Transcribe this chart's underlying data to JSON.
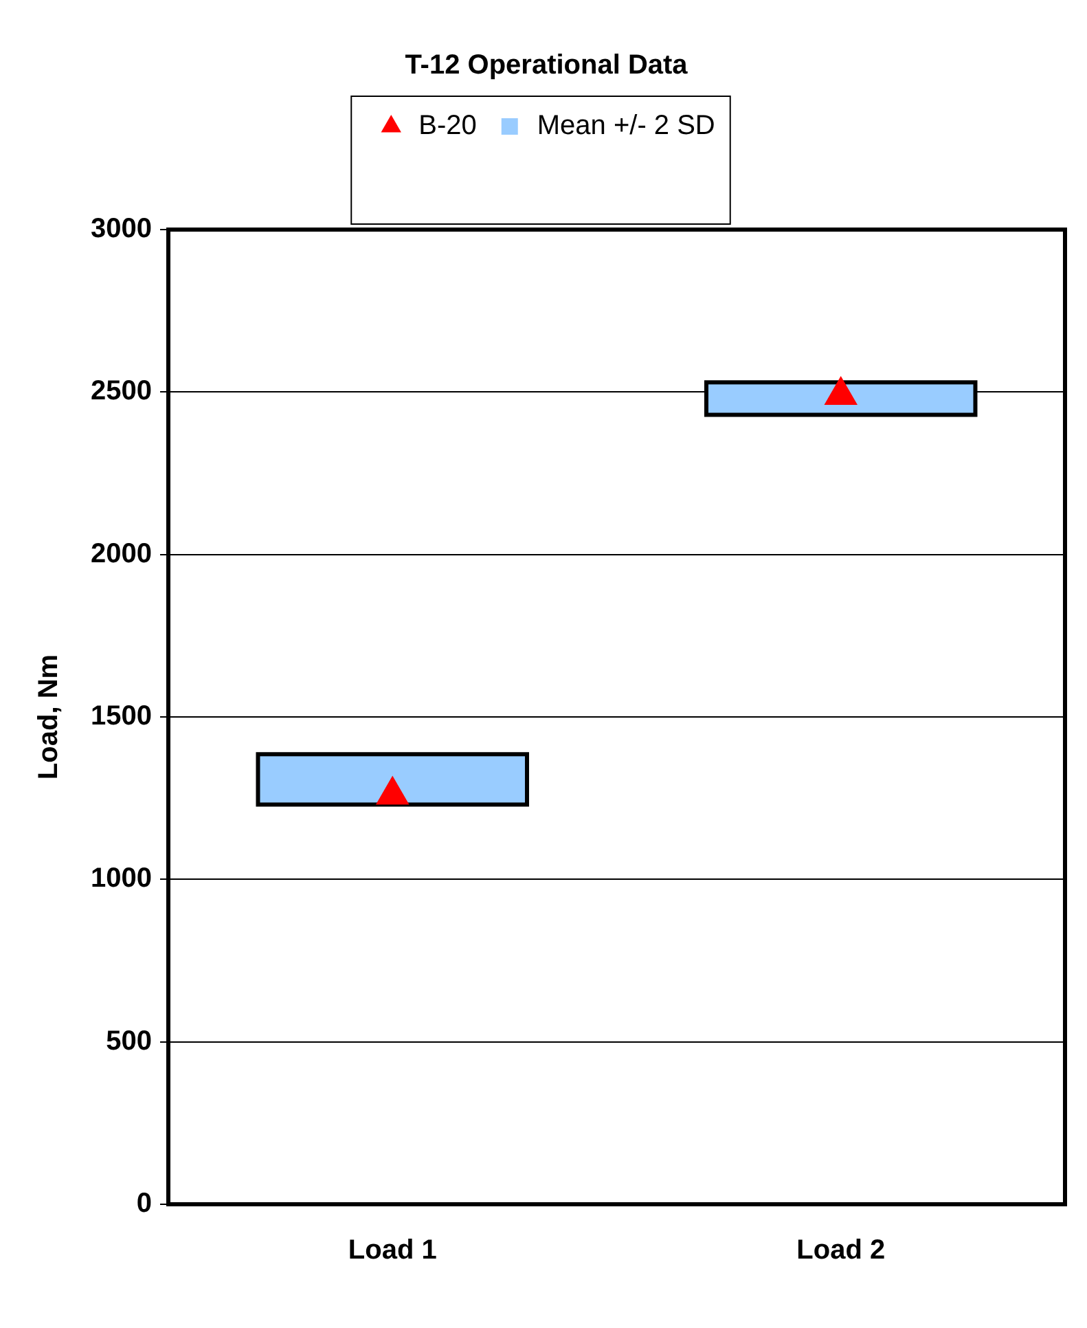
{
  "chart_data": {
    "type": "bar",
    "title": "T-12 Operational Data",
    "ylabel": "Load, Nm",
    "categories": [
      "Load 1",
      "Load 2"
    ],
    "series": [
      {
        "name": "Mean +/- 2 SD",
        "color": "#99ccff",
        "base": [
          1230,
          2430
        ],
        "values": [
          155,
          100
        ]
      },
      {
        "name": "B-20",
        "type": "scatter",
        "color": "#ff0000",
        "x": [
          "Load 1",
          "Load 2"
        ],
        "values": [
          1260,
          2490
        ],
        "marker": "triangle"
      }
    ],
    "ylim": [
      0,
      3000
    ],
    "yticks": [
      0,
      500,
      1000,
      1500,
      2000,
      2500,
      3000
    ],
    "grid": "y",
    "legend": "top"
  }
}
